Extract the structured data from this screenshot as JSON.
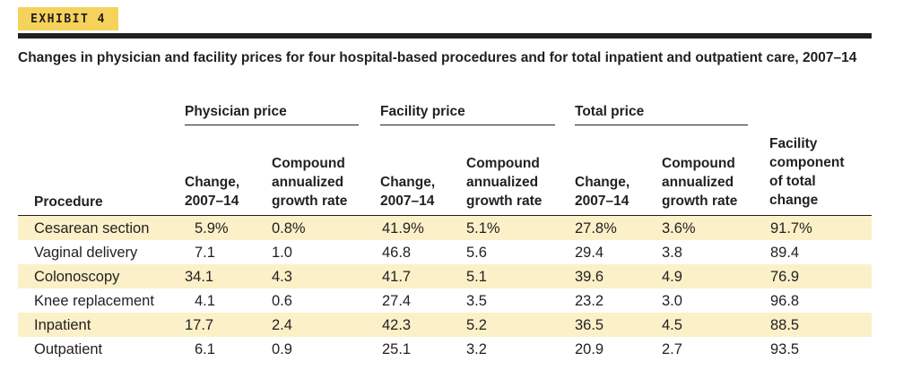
{
  "exhibit": {
    "label": "EXHIBIT 4"
  },
  "caption": "Changes in physician and facility prices for four hospital-based procedures and for total inpatient and outpatient care, 2007–14",
  "groups": {
    "physician": "Physician price",
    "facility": "Facility price",
    "total": "Total price"
  },
  "columns": {
    "procedure": "Procedure",
    "change_line1": "Change,",
    "change_line2": "2007–14",
    "cagr_line1": "Compound",
    "cagr_line2": "annualized",
    "cagr_line3": "growth rate",
    "facility_component_line1": "Facility",
    "facility_component_line2": "component",
    "facility_component_line3": "of total",
    "facility_component_line4": "change"
  },
  "rows": [
    {
      "procedure": "Cesarean section",
      "phys_change": "5.9%",
      "phys_cagr": "0.8%",
      "fac_change": "41.9%",
      "fac_cagr": "5.1%",
      "tot_change": "27.8%",
      "tot_cagr": "3.6%",
      "fac_component": "91.7%"
    },
    {
      "procedure": "Vaginal delivery",
      "phys_change": "7.1",
      "phys_cagr": "1.0",
      "fac_change": "46.8",
      "fac_cagr": "5.6",
      "tot_change": "29.4",
      "tot_cagr": "3.8",
      "fac_component": "89.4"
    },
    {
      "procedure": "Colonoscopy",
      "phys_change": "34.1",
      "phys_cagr": "4.3",
      "fac_change": "41.7",
      "fac_cagr": "5.1",
      "tot_change": "39.6",
      "tot_cagr": "4.9",
      "fac_component": "76.9"
    },
    {
      "procedure": "Knee replacement",
      "phys_change": "4.1",
      "phys_cagr": "0.6",
      "fac_change": "27.4",
      "fac_cagr": "3.5",
      "tot_change": "23.2",
      "tot_cagr": "3.0",
      "fac_component": "96.8"
    },
    {
      "procedure": "Inpatient",
      "phys_change": "17.7",
      "phys_cagr": "2.4",
      "fac_change": "42.3",
      "fac_cagr": "5.2",
      "tot_change": "36.5",
      "tot_cagr": "4.5",
      "fac_component": "88.5"
    },
    {
      "procedure": "Outpatient",
      "phys_change": "6.1",
      "phys_cagr": "0.9",
      "fac_change": "25.1",
      "fac_cagr": "3.2",
      "tot_change": "20.9",
      "tot_cagr": "2.7",
      "fac_component": "93.5"
    }
  ],
  "colors": {
    "badge": "#f5d25a",
    "row_shade": "#fbf0c8",
    "ink": "#231f20"
  }
}
